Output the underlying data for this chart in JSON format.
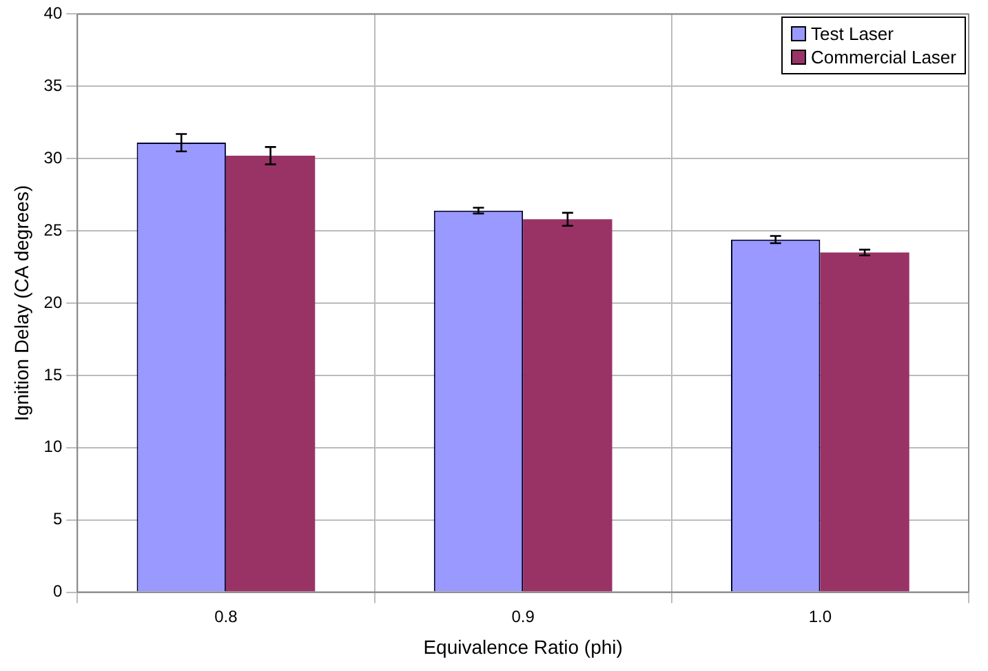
{
  "chart_data": {
    "type": "bar",
    "xlabel": "Equivalence Ratio (phi)",
    "ylabel": "Ignition Delay (CA degrees)",
    "categories": [
      "0.8",
      "0.9",
      "1.0"
    ],
    "series": [
      {
        "name": "Test Laser",
        "color": "#9999ff",
        "values": [
          31.1,
          26.4,
          24.4
        ],
        "errors": [
          0.6,
          0.2,
          0.25
        ]
      },
      {
        "name": "Commercial Laser",
        "color": "#993366",
        "values": [
          30.2,
          25.8,
          23.5
        ],
        "errors": [
          0.6,
          0.45,
          0.2
        ]
      }
    ],
    "ylim": [
      0,
      40
    ],
    "yticks": [
      0,
      5,
      10,
      15,
      20,
      25,
      30,
      35,
      40
    ],
    "grid": true,
    "legend": "top right"
  }
}
